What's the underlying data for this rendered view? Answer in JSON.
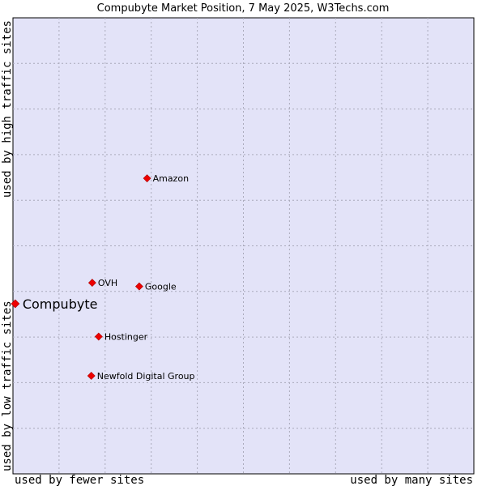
{
  "chart_data": {
    "type": "scatter",
    "title": "Compubyte Market Position, 7 May 2025, W3Techs.com",
    "xlabel_left": "used by fewer sites",
    "xlabel_right": "used by many sites",
    "ylabel_bottom": "used by low traffic sites",
    "ylabel_top": "used by high traffic sites",
    "xlim": [
      0,
      100
    ],
    "ylim": [
      0,
      100
    ],
    "grid": true,
    "colors": {
      "background": "#e3e3f8",
      "grid": "#aaaabb",
      "marker": "#ee0000"
    },
    "points": [
      {
        "name": "Compubyte",
        "x": 0.5,
        "y": 37.3,
        "highlight": true
      },
      {
        "name": "Amazon",
        "x": 29.1,
        "y": 64.8,
        "highlight": false
      },
      {
        "name": "OVH",
        "x": 17.2,
        "y": 41.9,
        "highlight": false
      },
      {
        "name": "Google",
        "x": 27.4,
        "y": 41.1,
        "highlight": false
      },
      {
        "name": "Hostinger",
        "x": 18.6,
        "y": 30.1,
        "highlight": false
      },
      {
        "name": "Newfold Digital Group",
        "x": 17.0,
        "y": 21.5,
        "highlight": false
      }
    ]
  }
}
